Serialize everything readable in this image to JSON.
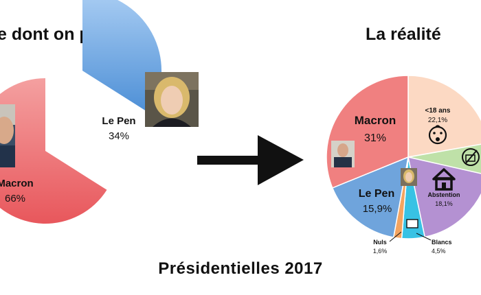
{
  "headings": {
    "left": "e dont on parle",
    "right": "La réalité",
    "footer": "Présidentielles 2017"
  },
  "colors": {
    "macron": "#f08080",
    "lepen": "#6fa4dc",
    "under18": "#fcd9c3",
    "nonvoters": "#bfe1a8",
    "abstention": "#b491d2",
    "blancs": "#38c2e4",
    "nuls": "#f4a460"
  },
  "icons": [
    "arrow-right-icon",
    "person-photo-macron",
    "person-photo-lepen",
    "baby-face-icon",
    "crossed-ballot-icon",
    "house-icon",
    "blank-ballot-icon"
  ],
  "chart_data": [
    {
      "type": "pie",
      "title": "e dont on parle",
      "slices": [
        {
          "name": "Macron",
          "label": "Macron",
          "value_label": "66%",
          "value": 66
        },
        {
          "name": "Le Pen",
          "label": "Le Pen",
          "value_label": "34%",
          "value": 34
        }
      ]
    },
    {
      "type": "pie",
      "title": "La réalité",
      "slices": [
        {
          "name": "<18 ans",
          "label": "<18 ans",
          "value_label": "22,1%",
          "value": 22.1
        },
        {
          "name": "non-inscrits",
          "label": "",
          "value_label": "",
          "value": 6.3
        },
        {
          "name": "Abstention",
          "label": "Abstention",
          "value_label": "18,1%",
          "value": 18.1
        },
        {
          "name": "Blancs",
          "label": "Blancs",
          "value_label": "4,5%",
          "value": 4.5
        },
        {
          "name": "Nuls",
          "label": "Nuls",
          "value_label": "1,6%",
          "value": 1.6
        },
        {
          "name": "Le Pen",
          "label": "Le Pen",
          "value_label": "15,9%",
          "value": 15.9
        },
        {
          "name": "Macron",
          "label": "Macron",
          "value_label": "31%",
          "value": 31
        }
      ]
    }
  ]
}
